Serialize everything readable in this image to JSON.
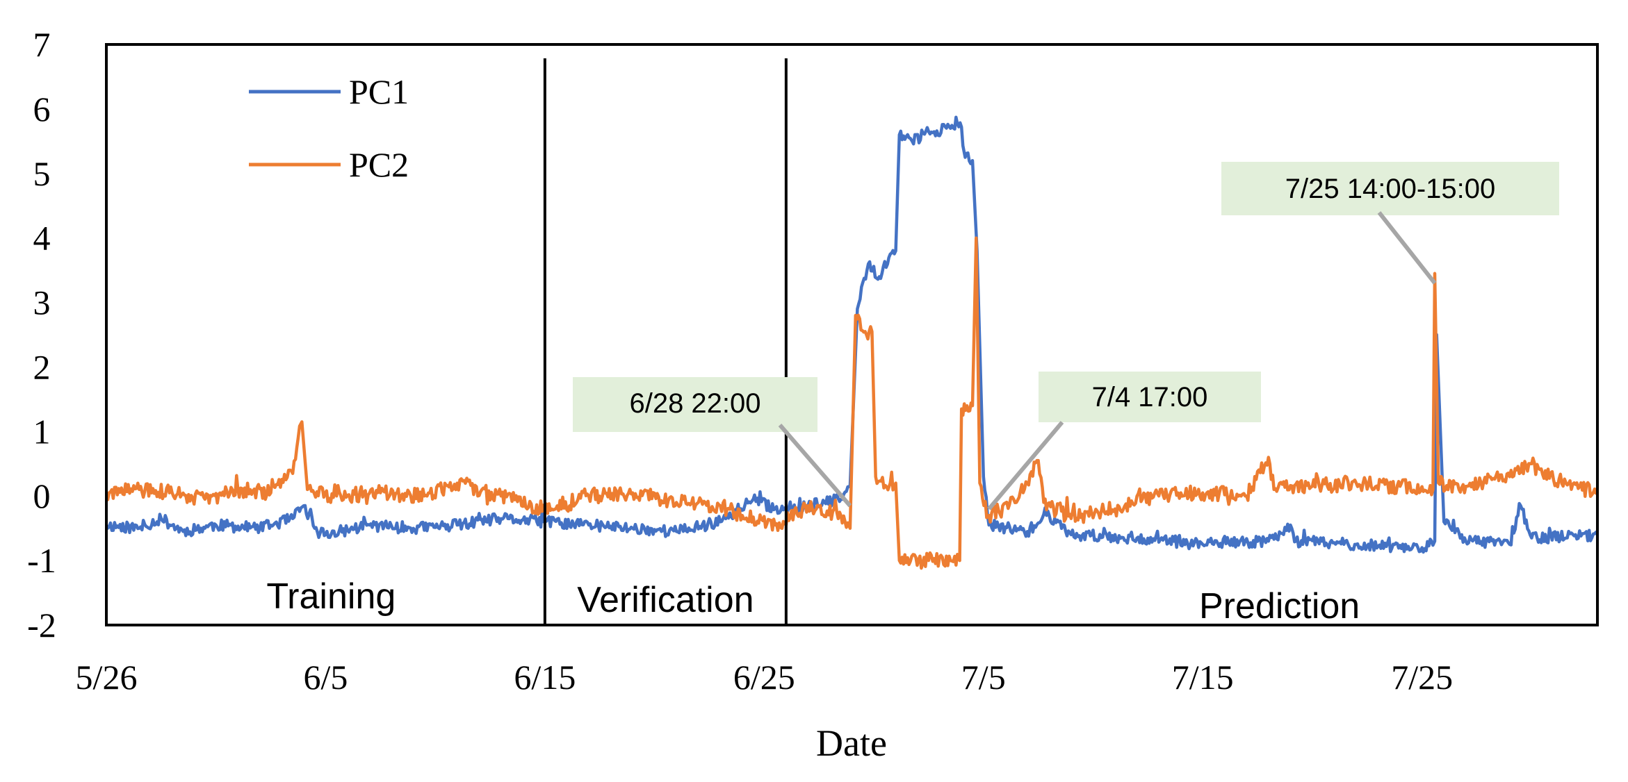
{
  "chart_data": {
    "type": "line",
    "xlabel": "Date",
    "ylabel": "",
    "x_range": [
      "2021-05-26",
      "2021-08-02"
    ],
    "x_tick_labels": [
      {
        "date": "2021-05-26",
        "label": "5/26"
      },
      {
        "date": "2021-06-05",
        "label": "6/5"
      },
      {
        "date": "2021-06-15",
        "label": "6/15"
      },
      {
        "date": "2021-06-25",
        "label": "6/25"
      },
      {
        "date": "2021-07-05",
        "label": "7/5"
      },
      {
        "date": "2021-07-15",
        "label": "7/15"
      },
      {
        "date": "2021-07-25",
        "label": "7/25"
      }
    ],
    "ylim": [
      -2,
      7
    ],
    "y_ticks": [
      -2,
      -1,
      0,
      1,
      2,
      3,
      4,
      5,
      6,
      7
    ],
    "grid": false,
    "legend_position": "top-left",
    "series": [
      {
        "name": "PC1",
        "color": "#4472C4",
        "points": [
          {
            "x": "2021-05-26T00:00",
            "y": -0.45
          },
          {
            "x": "2021-05-27T12:00",
            "y": -0.5
          },
          {
            "x": "2021-05-28T12:00",
            "y": -0.35
          },
          {
            "x": "2021-05-29T12:00",
            "y": -0.55
          },
          {
            "x": "2021-05-31T00:00",
            "y": -0.45
          },
          {
            "x": "2021-06-02T00:00",
            "y": -0.5
          },
          {
            "x": "2021-06-03T12:00",
            "y": -0.35
          },
          {
            "x": "2021-06-04T00:00",
            "y": -0.15
          },
          {
            "x": "2021-06-04T12:00",
            "y": -0.5
          },
          {
            "x": "2021-06-05T00:00",
            "y": -0.6
          },
          {
            "x": "2021-06-07T00:00",
            "y": -0.45
          },
          {
            "x": "2021-06-09T00:00",
            "y": -0.5
          },
          {
            "x": "2021-06-11T00:00",
            "y": -0.45
          },
          {
            "x": "2021-06-13T00:00",
            "y": -0.35
          },
          {
            "x": "2021-06-15T00:00",
            "y": -0.4
          },
          {
            "x": "2021-06-17T00:00",
            "y": -0.45
          },
          {
            "x": "2021-06-19T00:00",
            "y": -0.5
          },
          {
            "x": "2021-06-21T00:00",
            "y": -0.55
          },
          {
            "x": "2021-06-23T00:00",
            "y": -0.4
          },
          {
            "x": "2021-06-24T12:00",
            "y": -0.05
          },
          {
            "x": "2021-06-25T12:00",
            "y": -0.2
          },
          {
            "x": "2021-06-27T00:00",
            "y": -0.15
          },
          {
            "x": "2021-06-28T12:00",
            "y": -0.05
          },
          {
            "x": "2021-06-28T22:00",
            "y": 0.15
          },
          {
            "x": "2021-06-29T06:00",
            "y": 2.9
          },
          {
            "x": "2021-06-29T18:00",
            "y": 3.6
          },
          {
            "x": "2021-06-30T06:00",
            "y": 3.4
          },
          {
            "x": "2021-06-30T18:00",
            "y": 3.75
          },
          {
            "x": "2021-07-01T00:00",
            "y": 3.8
          },
          {
            "x": "2021-07-01T04:00",
            "y": 5.6
          },
          {
            "x": "2021-07-01T18:00",
            "y": 5.5
          },
          {
            "x": "2021-07-02T12:00",
            "y": 5.65
          },
          {
            "x": "2021-07-03T12:00",
            "y": 5.7
          },
          {
            "x": "2021-07-04T00:00",
            "y": 5.72
          },
          {
            "x": "2021-07-04T04:00",
            "y": 5.25
          },
          {
            "x": "2021-07-04T12:00",
            "y": 5.2
          },
          {
            "x": "2021-07-04T17:00",
            "y": 3.8
          },
          {
            "x": "2021-07-05T00:00",
            "y": 0.3
          },
          {
            "x": "2021-07-05T06:00",
            "y": -0.45
          },
          {
            "x": "2021-07-07T00:00",
            "y": -0.55
          },
          {
            "x": "2021-07-08T00:00",
            "y": -0.3
          },
          {
            "x": "2021-07-09T00:00",
            "y": -0.6
          },
          {
            "x": "2021-07-12T00:00",
            "y": -0.65
          },
          {
            "x": "2021-07-15T00:00",
            "y": -0.75
          },
          {
            "x": "2021-07-18T00:00",
            "y": -0.7
          },
          {
            "x": "2021-07-19T00:00",
            "y": -0.45
          },
          {
            "x": "2021-07-19T06:00",
            "y": -0.7
          },
          {
            "x": "2021-07-22T00:00",
            "y": -0.75
          },
          {
            "x": "2021-07-25T00:00",
            "y": -0.8
          },
          {
            "x": "2021-07-25T14:00",
            "y": -0.7
          },
          {
            "x": "2021-07-25T16:00",
            "y": 2.5
          },
          {
            "x": "2021-07-26T00:00",
            "y": -0.4
          },
          {
            "x": "2021-07-27T00:00",
            "y": -0.7
          },
          {
            "x": "2021-07-29T00:00",
            "y": -0.75
          },
          {
            "x": "2021-07-29T12:00",
            "y": -0.15
          },
          {
            "x": "2021-07-30T00:00",
            "y": -0.65
          },
          {
            "x": "2021-08-02T00:00",
            "y": -0.6
          }
        ]
      },
      {
        "name": "PC2",
        "color": "#ED7D31",
        "points": [
          {
            "x": "2021-05-26T00:00",
            "y": 0.0
          },
          {
            "x": "2021-05-27T12:00",
            "y": 0.1
          },
          {
            "x": "2021-05-29T00:00",
            "y": 0.05
          },
          {
            "x": "2021-05-30T12:00",
            "y": -0.05
          },
          {
            "x": "2021-06-01T00:00",
            "y": 0.1
          },
          {
            "x": "2021-06-02T12:00",
            "y": 0.05
          },
          {
            "x": "2021-06-03T12:00",
            "y": 0.35
          },
          {
            "x": "2021-06-03T22:00",
            "y": 1.15
          },
          {
            "x": "2021-06-04T04:00",
            "y": 0.1
          },
          {
            "x": "2021-06-05T12:00",
            "y": 0.0
          },
          {
            "x": "2021-06-07T12:00",
            "y": 0.05
          },
          {
            "x": "2021-06-09T12:00",
            "y": 0.0
          },
          {
            "x": "2021-06-11T00:00",
            "y": 0.2
          },
          {
            "x": "2021-06-13T00:00",
            "y": 0.0
          },
          {
            "x": "2021-06-15T00:00",
            "y": -0.2
          },
          {
            "x": "2021-06-17T00:00",
            "y": 0.0
          },
          {
            "x": "2021-06-19T00:00",
            "y": 0.05
          },
          {
            "x": "2021-06-21T00:00",
            "y": -0.1
          },
          {
            "x": "2021-06-23T00:00",
            "y": -0.15
          },
          {
            "x": "2021-06-24T00:00",
            "y": -0.3
          },
          {
            "x": "2021-06-25T12:00",
            "y": -0.45
          },
          {
            "x": "2021-06-27T00:00",
            "y": -0.15
          },
          {
            "x": "2021-06-28T12:00",
            "y": -0.3
          },
          {
            "x": "2021-06-28T22:00",
            "y": -0.5
          },
          {
            "x": "2021-06-29T04:00",
            "y": 2.8
          },
          {
            "x": "2021-06-29T16:00",
            "y": 2.5
          },
          {
            "x": "2021-06-29T22:00",
            "y": 2.55
          },
          {
            "x": "2021-06-30T02:00",
            "y": 0.3
          },
          {
            "x": "2021-06-30T18:00",
            "y": 0.2
          },
          {
            "x": "2021-07-01T00:00",
            "y": 0.2
          },
          {
            "x": "2021-07-01T04:00",
            "y": -1.0
          },
          {
            "x": "2021-07-02T12:00",
            "y": -1.0
          },
          {
            "x": "2021-07-03T12:00",
            "y": -1.0
          },
          {
            "x": "2021-07-03T22:00",
            "y": -1.0
          },
          {
            "x": "2021-07-04T00:00",
            "y": 1.35
          },
          {
            "x": "2021-07-04T12:00",
            "y": 1.4
          },
          {
            "x": "2021-07-04T16:00",
            "y": 4.0
          },
          {
            "x": "2021-07-04T20:00",
            "y": 0.2
          },
          {
            "x": "2021-07-05T06:00",
            "y": -0.3
          },
          {
            "x": "2021-07-06T12:00",
            "y": -0.1
          },
          {
            "x": "2021-07-07T12:00",
            "y": 0.55
          },
          {
            "x": "2021-07-07T18:00",
            "y": -0.1
          },
          {
            "x": "2021-07-09T00:00",
            "y": -0.35
          },
          {
            "x": "2021-07-11T00:00",
            "y": -0.2
          },
          {
            "x": "2021-07-13T00:00",
            "y": 0.0
          },
          {
            "x": "2021-07-15T00:00",
            "y": 0.05
          },
          {
            "x": "2021-07-17T00:00",
            "y": 0.0
          },
          {
            "x": "2021-07-18T00:00",
            "y": 0.6
          },
          {
            "x": "2021-07-18T06:00",
            "y": 0.1
          },
          {
            "x": "2021-07-20T00:00",
            "y": 0.15
          },
          {
            "x": "2021-07-22T00:00",
            "y": 0.2
          },
          {
            "x": "2021-07-24T00:00",
            "y": 0.15
          },
          {
            "x": "2021-07-25T12:00",
            "y": 0.1
          },
          {
            "x": "2021-07-25T14:00",
            "y": 3.45
          },
          {
            "x": "2021-07-25T18:00",
            "y": 0.2
          },
          {
            "x": "2021-07-27T00:00",
            "y": 0.15
          },
          {
            "x": "2021-07-29T00:00",
            "y": 0.3
          },
          {
            "x": "2021-07-30T00:00",
            "y": 0.5
          },
          {
            "x": "2021-07-31T00:00",
            "y": 0.25
          },
          {
            "x": "2021-08-02T00:00",
            "y": 0.05
          }
        ]
      }
    ],
    "phase_dividers": [
      "2021-06-15T00:00",
      "2021-06-26T00:00"
    ],
    "phases": [
      {
        "label": "Training",
        "center": "2021-06-05T06:00",
        "y": -1.55
      },
      {
        "label": "Verification",
        "center": "2021-06-20T12:00",
        "y": -1.6
      },
      {
        "label": "Prediction",
        "center": "2021-07-18T12:00",
        "y": -1.7
      }
    ],
    "annotations": [
      {
        "label": "6/28 22:00",
        "x": "2021-06-28T22:00",
        "y": 0.0
      },
      {
        "label": "7/4 17:00",
        "x": "2021-07-05T06:00",
        "y": -0.05
      },
      {
        "label": "7/25 14:00-15:00",
        "x": "2021-07-25T14:00",
        "y": 3.45
      }
    ],
    "annotation_box_color": "#E2EFDA",
    "leader_color": "#A6A6A6"
  }
}
